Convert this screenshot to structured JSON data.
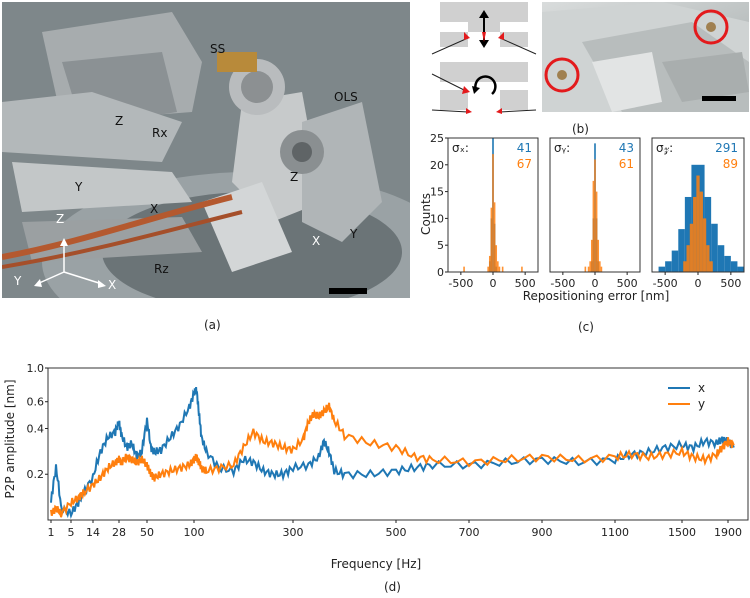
{
  "panel_a": {
    "labels": [
      "SS",
      "OLS",
      "Z",
      "Rx",
      "Y",
      "X",
      "Z",
      "X",
      "Y",
      "Rz",
      "Z",
      "Y",
      "X"
    ],
    "caption": "(a)"
  },
  "panel_b": {
    "caption": "(b)"
  },
  "panel_c": {
    "caption": "(c)",
    "ylabel": "Counts",
    "xlabel": "Repositioning error [nm]",
    "yticks": [
      "0",
      "5",
      "10",
      "15",
      "20",
      "25"
    ],
    "xticks": [
      "-500",
      "0",
      "500"
    ],
    "subplots": [
      {
        "sigma_label": "σₓ:",
        "value1": "41",
        "value2": "67"
      },
      {
        "sigma_label": "σᵧ:",
        "value1": "43",
        "value2": "61"
      },
      {
        "sigma_label": "σ𝓏:",
        "value1": "291",
        "value2": "89"
      }
    ]
  },
  "panel_d": {
    "caption": "(d)"
  },
  "colors": {
    "blue": "#1f77b4",
    "orange": "#ff7f0e",
    "red": "#e31a1c"
  },
  "chart_data": [
    {
      "type": "bar",
      "title": "",
      "ylabel": "Counts",
      "xlabel": "Repositioning error [nm]",
      "xlim": [
        -700,
        700
      ],
      "ylim": [
        0,
        25
      ],
      "subplots": [
        {
          "series": [
            {
              "name": "",
              "color": "#1f77b4",
              "bins": [
                -50,
                -25,
                0,
                25,
                50
              ],
              "counts": [
                2,
                10,
                25,
                9,
                1
              ],
              "bin_width": 25
            },
            {
              "name": "",
              "color": "#ff7f0e",
              "bins": [
                -450,
                -75,
                -50,
                -25,
                0,
                25,
                50,
                75,
                100,
                150,
                450
              ],
              "counts": [
                1,
                1,
                3,
                12,
                22,
                13,
                5,
                2,
                1,
                1,
                1
              ],
              "bin_width": 25
            }
          ]
        },
        {
          "series": [
            {
              "name": "",
              "color": "#1f77b4",
              "bins": [
                -50,
                -25,
                0,
                25,
                50
              ],
              "counts": [
                2,
                10,
                24,
                10,
                2
              ],
              "bin_width": 25
            },
            {
              "name": "",
              "color": "#ff7f0e",
              "bins": [
                -150,
                -100,
                -75,
                -50,
                -25,
                0,
                25,
                50,
                75,
                100
              ],
              "counts": [
                1,
                1,
                2,
                6,
                17,
                21,
                15,
                6,
                2,
                1
              ],
              "bin_width": 25
            }
          ]
        },
        {
          "series": [
            {
              "name": "",
              "color": "#1f77b4",
              "bins": [
                -550,
                -450,
                -350,
                -250,
                -150,
                -50,
                50,
                150,
                250,
                350,
                450,
                550,
                650
              ],
              "counts": [
                1,
                2,
                4,
                8,
                14,
                20,
                20,
                14,
                9,
                5,
                3,
                2,
                1
              ],
              "bin_width": 100
            },
            {
              "name": "",
              "color": "#ff7f0e",
              "bins": [
                -200,
                -150,
                -100,
                -50,
                0,
                50,
                100,
                150,
                200
              ],
              "counts": [
                2,
                5,
                9,
                14,
                18,
                15,
                10,
                5,
                2
              ],
              "bin_width": 50
            }
          ]
        }
      ]
    },
    {
      "type": "line",
      "title": "",
      "xlabel": "Frequency [Hz]",
      "ylabel": "P2P amplitude [nm]",
      "xticks": [
        "1",
        "5",
        "14",
        "28",
        "50",
        "100",
        "300",
        "500",
        "700",
        "900",
        "1100",
        "1500",
        "1900"
      ],
      "yticks": [
        "0.2",
        "0.4",
        "0.6",
        "1.0"
      ],
      "ylim": [
        0.1,
        1.0
      ],
      "xlim": [
        1,
        1950
      ],
      "series": [
        {
          "name": "x",
          "color": "#1f77b4",
          "x": [
            1,
            2,
            3,
            5,
            8,
            10,
            14,
            18,
            22,
            26,
            28,
            30,
            34,
            38,
            42,
            46,
            50,
            54,
            58,
            65,
            75,
            85,
            95,
            100,
            105,
            110,
            115,
            125,
            150,
            180,
            200,
            220,
            240,
            260,
            280,
            300,
            330,
            350,
            360,
            370,
            380,
            400,
            450,
            500,
            550,
            600,
            700,
            800,
            900,
            1000,
            1100,
            1200,
            1300,
            1400,
            1500,
            1600,
            1700,
            1800,
            1850,
            1900,
            1950
          ],
          "y": [
            0.13,
            0.22,
            0.12,
            0.11,
            0.13,
            0.15,
            0.19,
            0.28,
            0.35,
            0.38,
            0.44,
            0.36,
            0.3,
            0.32,
            0.26,
            0.28,
            0.45,
            0.3,
            0.28,
            0.29,
            0.35,
            0.42,
            0.55,
            0.68,
            0.72,
            0.5,
            0.35,
            0.28,
            0.22,
            0.21,
            0.25,
            0.24,
            0.21,
            0.2,
            0.2,
            0.22,
            0.23,
            0.26,
            0.33,
            0.28,
            0.21,
            0.2,
            0.2,
            0.21,
            0.22,
            0.23,
            0.23,
            0.24,
            0.25,
            0.24,
            0.25,
            0.27,
            0.28,
            0.3,
            0.31,
            0.3,
            0.33,
            0.32,
            0.34,
            0.33,
            0.3
          ]
        },
        {
          "name": "y",
          "color": "#ff7f0e",
          "x": [
            1,
            2,
            3,
            5,
            8,
            10,
            14,
            18,
            22,
            26,
            28,
            30,
            34,
            38,
            42,
            46,
            50,
            54,
            58,
            65,
            75,
            85,
            95,
            100,
            105,
            110,
            115,
            125,
            150,
            180,
            200,
            220,
            240,
            260,
            280,
            300,
            320,
            330,
            340,
            350,
            360,
            370,
            380,
            400,
            450,
            500,
            550,
            600,
            700,
            800,
            900,
            1000,
            1100,
            1200,
            1300,
            1400,
            1500,
            1600,
            1700,
            1800,
            1850,
            1900,
            1950
          ],
          "y": [
            0.11,
            0.12,
            0.11,
            0.13,
            0.14,
            0.15,
            0.17,
            0.19,
            0.22,
            0.24,
            0.25,
            0.24,
            0.26,
            0.25,
            0.24,
            0.25,
            0.23,
            0.2,
            0.19,
            0.2,
            0.21,
            0.22,
            0.23,
            0.25,
            0.26,
            0.24,
            0.22,
            0.21,
            0.22,
            0.23,
            0.3,
            0.38,
            0.33,
            0.32,
            0.3,
            0.29,
            0.34,
            0.44,
            0.5,
            0.48,
            0.52,
            0.56,
            0.45,
            0.36,
            0.32,
            0.3,
            0.26,
            0.25,
            0.24,
            0.25,
            0.26,
            0.25,
            0.26,
            0.27,
            0.26,
            0.27,
            0.28,
            0.26,
            0.25,
            0.27,
            0.3,
            0.33,
            0.31
          ]
        }
      ]
    }
  ]
}
